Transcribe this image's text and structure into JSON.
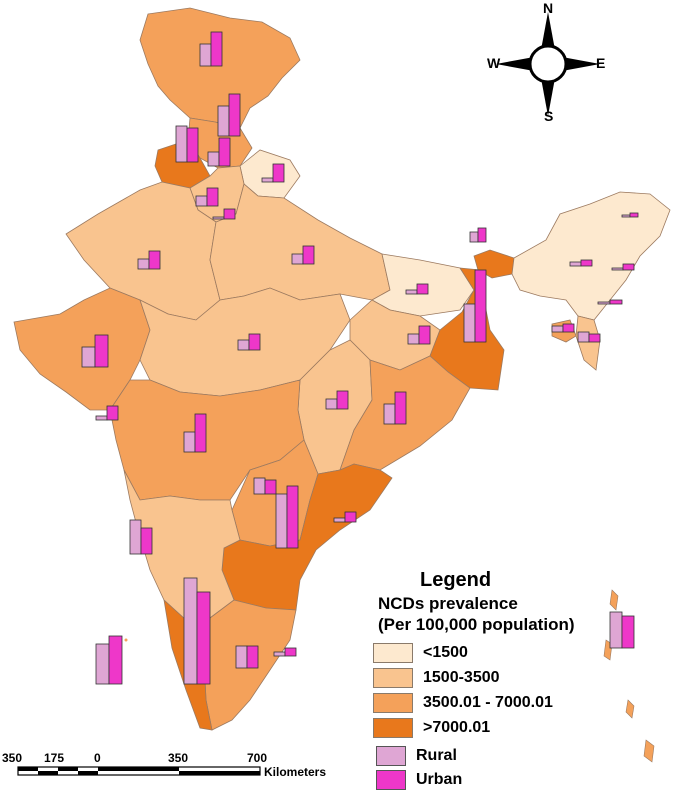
{
  "legend": {
    "title": "Legend",
    "subtitle_1": "NCDs prevalence",
    "subtitle_2": "(Per 100,000 population)",
    "classes": [
      {
        "label": "<1500",
        "color": "#fde9cf"
      },
      {
        "label": "1500-3500",
        "color": "#f9c48f"
      },
      {
        "label": "3500.01 - 7000.01",
        "color": "#f4a15a"
      },
      {
        "label": ">7000.01",
        "color": "#e8781c"
      }
    ],
    "bars": [
      {
        "label": "Rural",
        "color": "#dfa6d4"
      },
      {
        "label": "Urban",
        "color": "#ee37c9"
      }
    ]
  },
  "compass": {
    "n": "N",
    "s": "S",
    "e": "E",
    "w": "W"
  },
  "scale": {
    "ticks": [
      "350",
      "175",
      "0",
      "350",
      "700"
    ],
    "unit": "Kilometers"
  },
  "chart_data": {
    "type": "bar",
    "description_units": "Map with paired rural/urban bars per region; values read in relative bar height",
    "series_names": [
      "Rural",
      "Urban"
    ]
  }
}
